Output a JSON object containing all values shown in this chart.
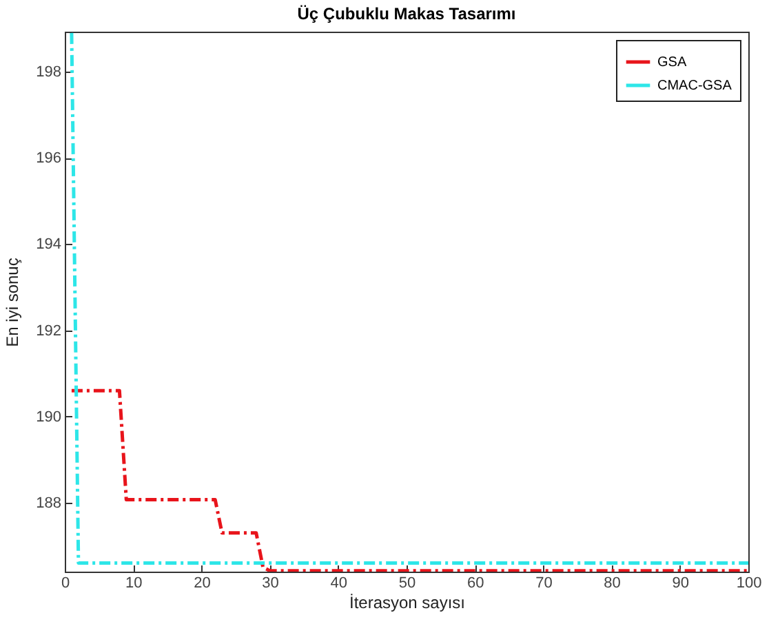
{
  "chart_data": {
    "type": "line",
    "title": "Üç Çubuklu Makas Tasarımı",
    "xlabel": "İterasyon sayısı",
    "ylabel": "En iyi sonuç",
    "series": [
      {
        "name": "GSA",
        "color": "#e8141b",
        "line_style": "dashed",
        "x": [
          1,
          8,
          9,
          22,
          23,
          28,
          29,
          30,
          100
        ],
        "values": [
          190.6,
          190.6,
          188.07,
          188.07,
          187.3,
          187.3,
          186.5,
          186.42,
          186.42
        ]
      },
      {
        "name": "CMAC-GSA",
        "color": "#2de6e8",
        "line_style": "dashed",
        "x": [
          1,
          2,
          100
        ],
        "values": [
          198.9,
          186.6,
          186.6
        ]
      }
    ],
    "xlim": [
      0,
      100
    ],
    "xticks": [
      0,
      10,
      20,
      30,
      40,
      50,
      60,
      70,
      80,
      90,
      100
    ],
    "ylim": [
      186.4,
      198.93
    ],
    "yticks": [
      188,
      190,
      192,
      194,
      196,
      198
    ],
    "grid": false,
    "legend": "top right",
    "marker": "none"
  }
}
